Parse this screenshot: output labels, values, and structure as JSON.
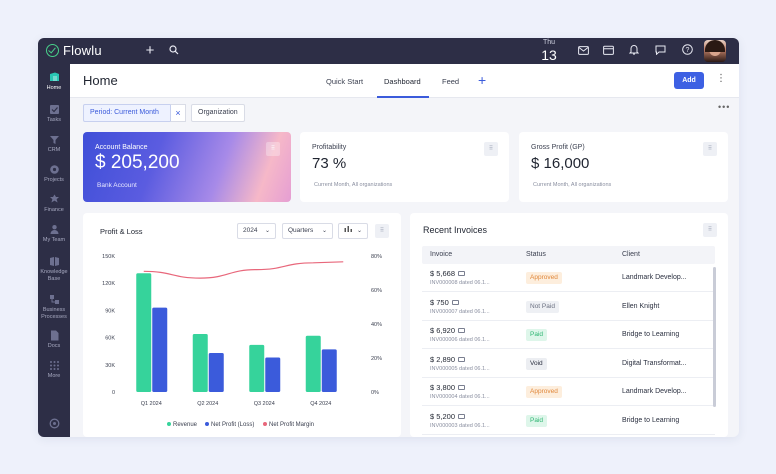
{
  "app": {
    "name": "Flowlu"
  },
  "topbar": {
    "day_of_week": "Thu",
    "day_number": "13",
    "icons": [
      "plus-icon",
      "search-icon",
      "mail-icon",
      "calendar-icon",
      "bell-icon",
      "chat-icon",
      "help-icon"
    ]
  },
  "sidebar": {
    "items": [
      {
        "label": "Home",
        "icon": "home-icon",
        "active": true
      },
      {
        "label": "Tasks",
        "icon": "tasks-icon"
      },
      {
        "label": "CRM",
        "icon": "crm-icon"
      },
      {
        "label": "Projects",
        "icon": "projects-icon"
      },
      {
        "label": "Finance",
        "icon": "finance-icon"
      },
      {
        "label": "My Team",
        "icon": "team-icon"
      },
      {
        "label": "Knowledge Base",
        "icon": "knowledge-icon"
      },
      {
        "label": "Business Processes",
        "icon": "processes-icon"
      },
      {
        "label": "Docs",
        "icon": "docs-icon"
      },
      {
        "label": "More",
        "icon": "more-icon"
      }
    ]
  },
  "header": {
    "title": "Home",
    "tabs": [
      {
        "label": "Quick Start"
      },
      {
        "label": "Dashboard",
        "active": true
      },
      {
        "label": "Feed"
      }
    ],
    "add_label": "Add"
  },
  "filters": {
    "period_prefix": "Period: ",
    "period_value": "Current Month",
    "organization": "Organization"
  },
  "kpis": {
    "balance": {
      "label": "Account Balance",
      "value": "$ 205,200",
      "sub": "Bank Account"
    },
    "profitability": {
      "label": "Profitability",
      "value": "73 %",
      "sub": "Current Month, All organizations"
    },
    "gross_profit": {
      "label": "Gross Profit (GP)",
      "value": "$ 16,000",
      "sub": "Current Month, All organizations"
    }
  },
  "profit_loss": {
    "title": "Profit & Loss",
    "year": "2024",
    "grouping": "Quarters"
  },
  "chart_data": {
    "type": "bar",
    "title": "Profit & Loss",
    "categories": [
      "Q1 2024",
      "Q2 2024",
      "Q3 2024",
      "Q4 2024"
    ],
    "y_ticks": [
      "150K",
      "120K",
      "90K",
      "60K",
      "30K",
      "0"
    ],
    "y2_ticks": [
      "80%",
      "60%",
      "40%",
      "20%",
      "0%"
    ],
    "ylim": [
      0,
      150000
    ],
    "y2lim": [
      0,
      80
    ],
    "series": [
      {
        "name": "Revenue",
        "type": "bar",
        "color": "#36d39b",
        "values": [
          131000,
          64000,
          52000,
          62000
        ]
      },
      {
        "name": "Net Profit (Loss)",
        "type": "bar",
        "color": "#3b5bdb",
        "values": [
          93000,
          43000,
          38000,
          47000
        ]
      },
      {
        "name": "Net Profit Margin",
        "type": "line",
        "axis": "y2",
        "color": "#e8677b",
        "values": [
          71,
          67,
          72,
          76
        ]
      }
    ],
    "legend": "bottom"
  },
  "invoices": {
    "title": "Recent Invoices",
    "columns": [
      "Invoice",
      "Status",
      "Client"
    ],
    "rows": [
      {
        "amount": "$ 5,668",
        "sub": "INV000008 dated 06.1...",
        "status": "Approved",
        "client": "Landmark Develop..."
      },
      {
        "amount": "$ 750",
        "sub": "INV000007 dated 06.1...",
        "status": "Not Paid",
        "client": "Ellen Knight"
      },
      {
        "amount": "$ 6,920",
        "sub": "INV000006 dated 06.1...",
        "status": "Paid",
        "client": "Bridge to Learning"
      },
      {
        "amount": "$ 2,890",
        "sub": "INV000005 dated 06.1...",
        "status": "Void",
        "client": "Digital Transformat..."
      },
      {
        "amount": "$ 3,800",
        "sub": "INV000004 dated 06.1...",
        "status": "Approved",
        "client": "Landmark Develop..."
      },
      {
        "amount": "$ 5,200",
        "sub": "INV000003 dated 06.1...",
        "status": "Paid",
        "client": "Bridge to Learning"
      }
    ],
    "status_colors": {
      "Approved": {
        "bg": "#fdeedd",
        "fg": "#e0873a"
      },
      "Not Paid": {
        "bg": "#eef0f4",
        "fg": "#6b7080"
      },
      "Paid": {
        "bg": "#def6ea",
        "fg": "#2fb673"
      },
      "Void": {
        "bg": "#eceef2",
        "fg": "#2b3040"
      }
    }
  }
}
